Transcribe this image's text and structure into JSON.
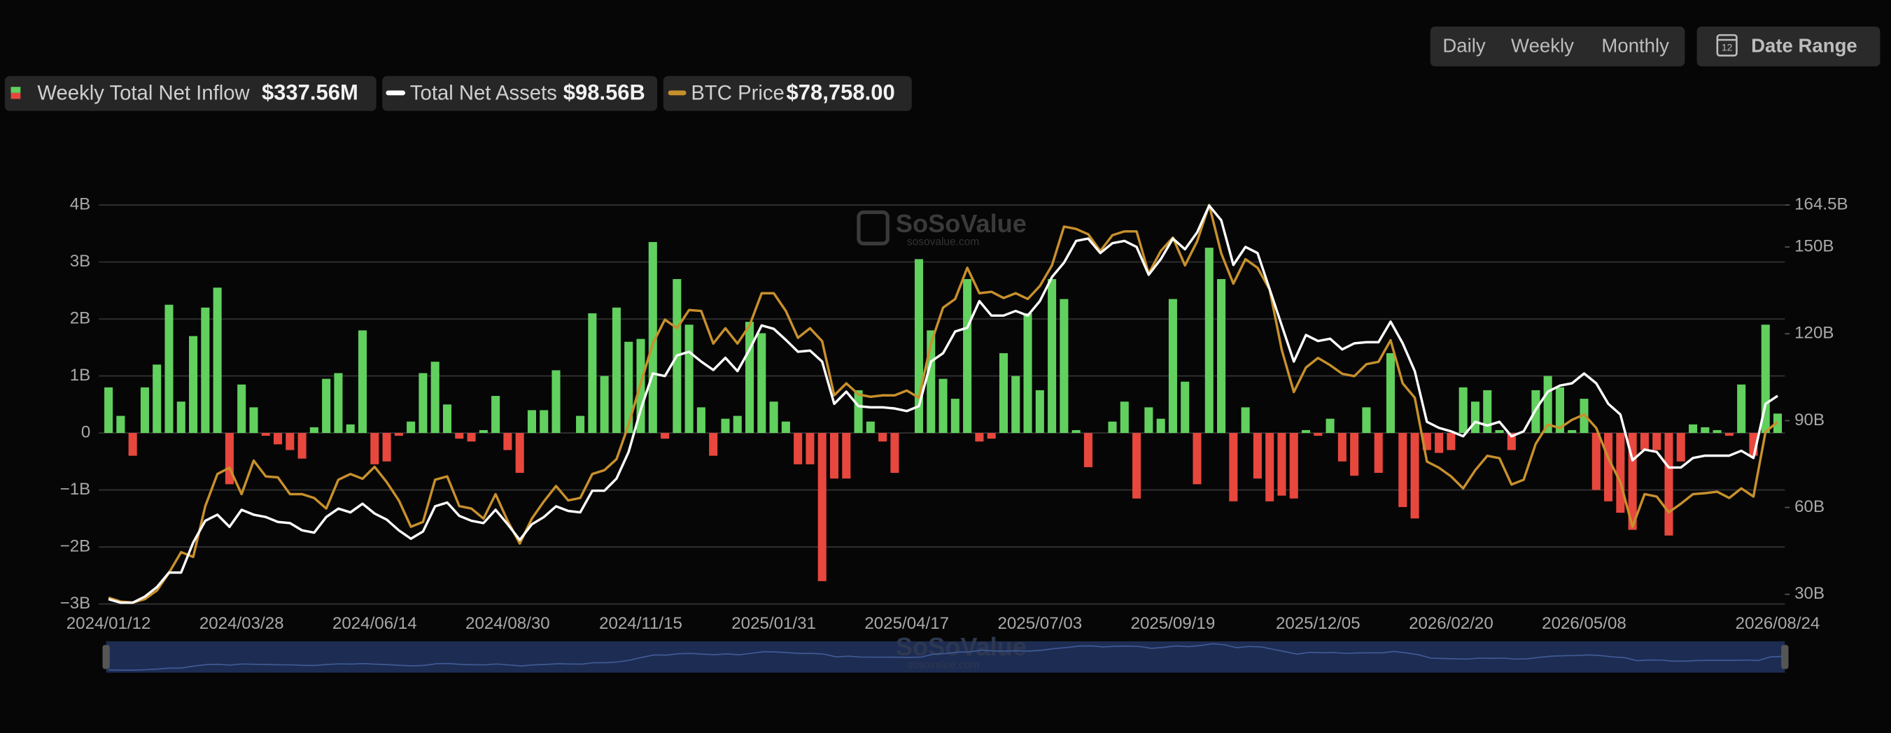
{
  "toolbar": {
    "periods": [
      "Daily",
      "Weekly",
      "Monthly"
    ],
    "active": 1,
    "date_range": "Date Range",
    "calendar_day": "12"
  },
  "watermark": {
    "brand": "SoSoValue",
    "site": "sosovalue.com"
  },
  "chart_data": {
    "type": "combo",
    "categories": [
      "2024/01/12",
      null,
      null,
      null,
      null,
      null,
      null,
      null,
      null,
      null,
      null,
      "2024/03/28",
      null,
      null,
      null,
      null,
      null,
      null,
      null,
      null,
      null,
      null,
      "2024/06/14",
      null,
      null,
      null,
      null,
      null,
      null,
      null,
      null,
      null,
      null,
      "2024/08/30",
      null,
      null,
      null,
      null,
      null,
      null,
      null,
      null,
      null,
      null,
      "2024/11/15",
      null,
      null,
      null,
      null,
      null,
      null,
      null,
      null,
      null,
      null,
      "2025/01/31",
      null,
      null,
      null,
      null,
      null,
      null,
      null,
      null,
      null,
      null,
      "2025/04/17",
      null,
      null,
      null,
      null,
      null,
      null,
      null,
      null,
      null,
      null,
      "2025/07/03",
      null,
      null,
      null,
      null,
      null,
      null,
      null,
      null,
      null,
      null,
      "2025/09/19",
      null,
      null,
      null,
      null,
      null,
      null,
      null,
      null,
      null,
      null,
      null,
      "2025/12/05",
      null,
      null,
      null,
      null,
      null,
      null,
      null,
      null,
      null,
      null,
      "2026/02/20",
      null,
      null,
      null,
      null,
      null,
      null,
      null,
      null,
      null,
      null,
      "2026/05/08",
      null,
      null,
      null,
      null,
      null,
      null,
      null,
      null,
      null,
      null,
      null,
      null,
      null,
      null,
      null,
      "2026/08/24"
    ],
    "series": [
      {
        "name": "Weekly Total Net Inflow",
        "type": "bar",
        "legend_value": "$337.56M",
        "color_positive": "#62d05e",
        "color_negative": "#e8473d",
        "values": [
          0.8,
          0.3,
          -0.4,
          0.8,
          1.2,
          2.25,
          0.55,
          1.7,
          2.2,
          2.55,
          -0.9,
          0.85,
          0.45,
          -0.05,
          -0.2,
          -0.3,
          -0.45,
          0.1,
          0.95,
          1.05,
          0.15,
          1.8,
          -0.55,
          -0.5,
          -0.05,
          0.2,
          1.05,
          1.25,
          0.5,
          -0.1,
          -0.15,
          0.05,
          0.65,
          -0.3,
          -0.7,
          0.4,
          0.4,
          1.1,
          0,
          0.3,
          2.1,
          1.0,
          2.2,
          1.6,
          1.65,
          3.35,
          -0.1,
          2.7,
          1.9,
          0.45,
          -0.4,
          0.25,
          0.3,
          1.95,
          1.75,
          0.55,
          0.2,
          -0.55,
          -0.55,
          -2.6,
          -0.8,
          -0.8,
          0.75,
          0.2,
          -0.15,
          -0.7,
          0,
          3.05,
          1.8,
          0.95,
          0.6,
          2.7,
          -0.15,
          -0.1,
          1.4,
          1.0,
          2.1,
          0.75,
          2.7,
          2.35,
          0.05,
          -0.6,
          0,
          0.2,
          0.55,
          -1.15,
          0.45,
          0.25,
          2.35,
          0.9,
          -0.9,
          3.25,
          2.7,
          -1.2,
          0.45,
          -0.8,
          -1.2,
          -1.1,
          -1.15,
          0.05,
          -0.05,
          0.25,
          -0.5,
          -0.75,
          0.45,
          -0.7,
          1.4,
          -1.3,
          -1.5,
          -0.3,
          -0.35,
          -0.3,
          0.8,
          0.55,
          0.75,
          0.05,
          -0.3,
          0,
          0.75,
          1.0,
          0.8,
          0.05,
          0.6,
          -1.0,
          -1.2,
          -1.4,
          -1.7,
          -0.3,
          -0.3,
          -1.8,
          -0.5,
          0.15,
          0.1,
          0.05,
          -0.05,
          0.85,
          -0.4,
          1.9,
          0.34
        ]
      },
      {
        "name": "BTC Price",
        "type": "line",
        "axis": "y3",
        "legend_value": "$78,758.00",
        "color": "#c8902c",
        "values": [
          42100,
          41300,
          41100,
          41800,
          43600,
          47300,
          51600,
          50600,
          61200,
          67900,
          69200,
          63700,
          70700,
          67400,
          67200,
          63700,
          63700,
          62900,
          60700,
          66700,
          67900,
          66900,
          69400,
          66200,
          62400,
          56900,
          57900,
          66700,
          67400,
          61200,
          60700,
          58600,
          63700,
          58100,
          53400,
          58600,
          62200,
          65400,
          62400,
          62900,
          67900,
          68700,
          71000,
          78200,
          86800,
          95100,
          100100,
          98300,
          102100,
          101900,
          95100,
          98300,
          95100,
          98900,
          105600,
          105600,
          101900,
          96300,
          98300,
          95600,
          84300,
          86800,
          84500,
          84000,
          84300,
          84300,
          85300,
          83800,
          95100,
          102600,
          104400,
          110900,
          105600,
          105900,
          104600,
          105600,
          104400,
          107100,
          111400,
          119500,
          119000,
          117900,
          114400,
          117700,
          118500,
          118500,
          109700,
          114400,
          117200,
          111400,
          116400,
          124000,
          113900,
          107600,
          112700,
          110900,
          106400,
          93800,
          85000,
          90100,
          92100,
          90600,
          88800,
          88300,
          90800,
          91300,
          95800,
          86800,
          83800,
          70500,
          69200,
          67400,
          64900,
          68700,
          71700,
          71200,
          65700,
          66700,
          74200,
          78200,
          77500,
          79200,
          80300,
          77500,
          71200,
          66200,
          56900,
          63700,
          63200,
          59900,
          61700,
          63700,
          63900,
          64200,
          62900,
          64900,
          63200,
          76700,
          78758
        ]
      },
      {
        "name": "Total Net Assets",
        "type": "line",
        "axis": "y2",
        "legend_value": "$98.56B",
        "color": "#ffffff",
        "values": [
          28.3,
          27.1,
          27.1,
          29.2,
          32.5,
          37.5,
          37.5,
          47.9,
          55.4,
          57.5,
          53.3,
          59.2,
          57.5,
          56.7,
          55.0,
          54.6,
          52.1,
          51.3,
          56.7,
          59.6,
          58.3,
          61.3,
          57.9,
          55.8,
          52.1,
          49.2,
          51.7,
          60.4,
          61.7,
          57.1,
          55.4,
          54.6,
          59.2,
          54.2,
          48.8,
          54.2,
          56.7,
          60.4,
          58.8,
          58.3,
          65.8,
          65.8,
          70.0,
          79.2,
          93.8,
          106.3,
          105.4,
          112.5,
          113.8,
          110.4,
          107.5,
          111.7,
          107.1,
          114.6,
          122.9,
          121.7,
          117.9,
          113.8,
          114.2,
          110.4,
          95.8,
          100.0,
          95.0,
          94.6,
          94.6,
          94.2,
          93.3,
          95.0,
          110.4,
          113.3,
          120.8,
          122.1,
          131.3,
          126.3,
          126.3,
          127.9,
          126.3,
          131.3,
          139.6,
          144.6,
          152.1,
          152.9,
          147.9,
          151.3,
          152.1,
          150.0,
          140.4,
          145.8,
          152.9,
          149.2,
          155.0,
          164.3,
          159.2,
          143.8,
          150.0,
          147.9,
          135.4,
          122.9,
          110.4,
          119.6,
          117.5,
          118.3,
          114.6,
          116.7,
          117.1,
          117.1,
          124.2,
          116.7,
          107.1,
          89.6,
          87.5,
          86.3,
          84.6,
          89.6,
          88.3,
          89.6,
          84.6,
          86.3,
          93.8,
          100.0,
          102.1,
          102.9,
          106.3,
          102.9,
          95.8,
          92.1,
          76.3,
          80.0,
          79.2,
          73.8,
          73.8,
          77.1,
          77.9,
          77.9,
          77.9,
          79.6,
          77.1,
          95.8,
          98.56
        ]
      }
    ],
    "ylim": [
      -3,
      4
    ],
    "yticks": [
      {
        "value": -3,
        "label": "−3B"
      },
      {
        "value": -2,
        "label": "−2B"
      },
      {
        "value": -1,
        "label": "−1B"
      },
      0,
      {
        "value": 1,
        "label": "1B"
      },
      {
        "value": 2,
        "label": "2B"
      },
      {
        "value": 3,
        "label": "3B"
      },
      {
        "value": 4,
        "label": "4B"
      }
    ],
    "y2lim": [
      26.67,
      164.5
    ],
    "y2ticks": [
      {
        "value": 30,
        "label": "30B"
      },
      {
        "value": 60,
        "label": "60B"
      },
      {
        "value": 90,
        "label": "90B"
      },
      {
        "value": 120,
        "label": "120B"
      },
      {
        "value": 150,
        "label": "150B"
      },
      {
        "value": 164.5,
        "label": "164.5B"
      }
    ],
    "y3lim": [
      40800,
      124000
    ],
    "grid": true
  }
}
